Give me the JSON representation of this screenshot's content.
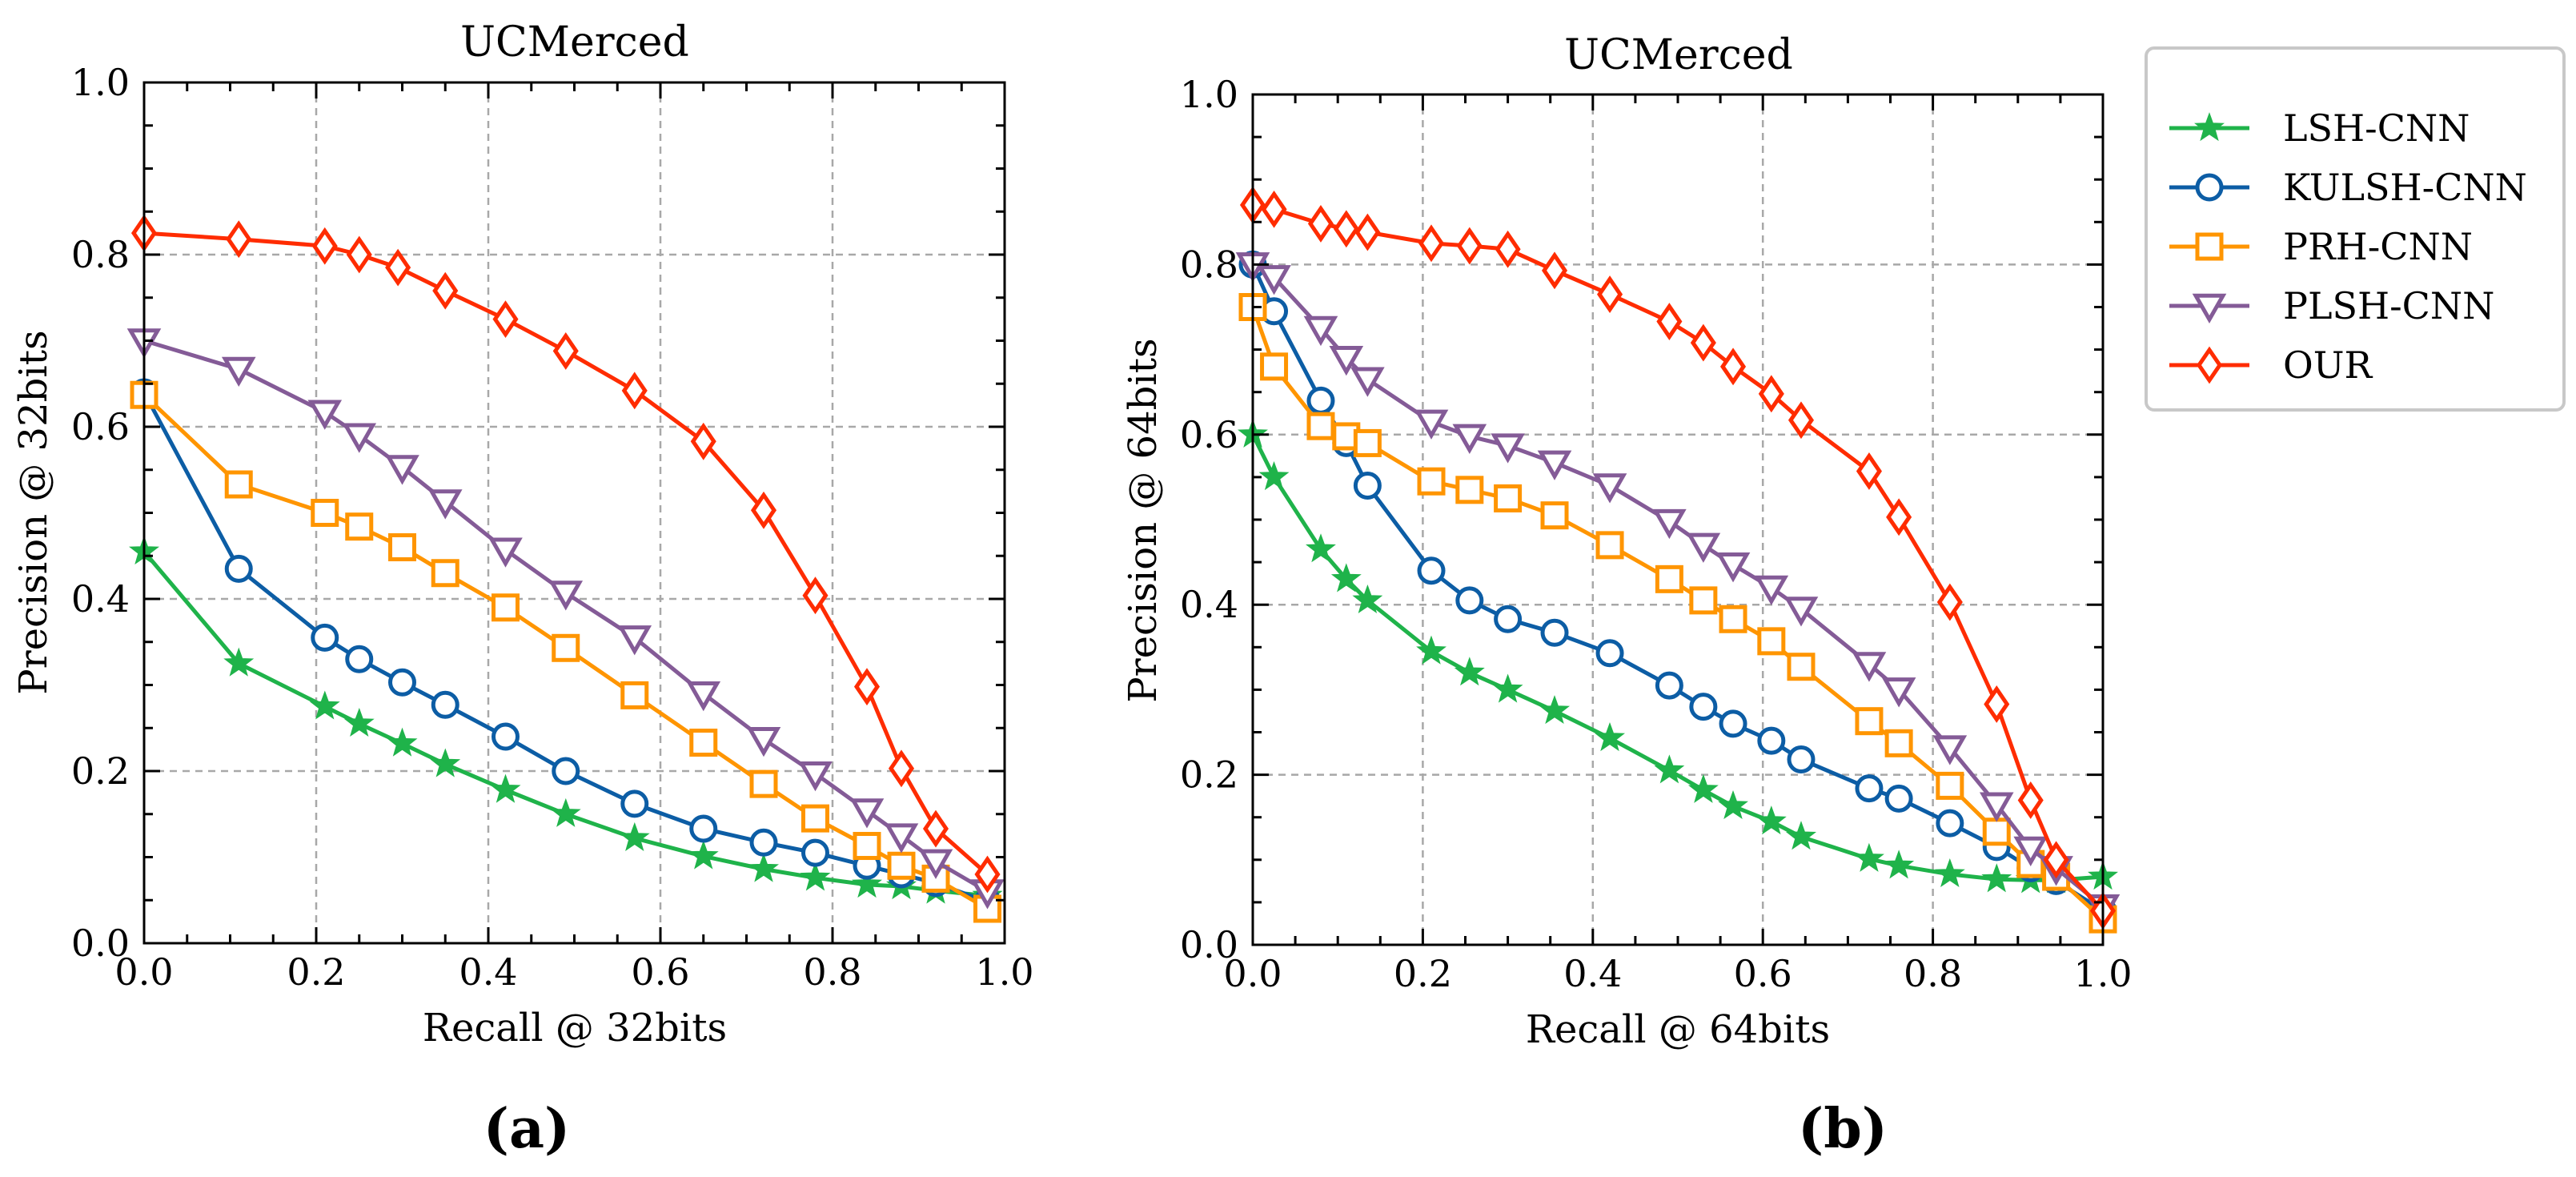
{
  "figure": {
    "legend": {
      "items": [
        {
          "label": "LSH-CNN",
          "color": "#1fb34a",
          "marker": "star"
        },
        {
          "label": "KULSH-CNN",
          "color": "#0c5da5",
          "marker": "circle"
        },
        {
          "label": "PRH-CNN",
          "color": "#ff9500",
          "marker": "square"
        },
        {
          "label": "PLSH-CNN",
          "color": "#845b97",
          "marker": "triangle-down"
        },
        {
          "label": "OUR",
          "color": "#ff2c00",
          "marker": "diamond"
        }
      ]
    }
  },
  "chart_data": [
    {
      "type": "line",
      "caption": "(a)",
      "title": "UCMerced",
      "xlabel": "Recall @ 32bits",
      "ylabel": "Precision @ 32bits",
      "xlim": [
        0,
        1
      ],
      "ylim": [
        0,
        1
      ],
      "xticks": [
        "0.0",
        "0.2",
        "0.4",
        "0.6",
        "0.8",
        "1.0"
      ],
      "yticks": [
        "0.0",
        "0.2",
        "0.4",
        "0.6",
        "0.8",
        "1.0"
      ],
      "grid": true,
      "series": [
        {
          "name": "LSH-CNN",
          "color": "#1fb34a",
          "marker": "star",
          "x": [
            0.0,
            0.11,
            0.21,
            0.25,
            0.3,
            0.35,
            0.42,
            0.49,
            0.57,
            0.65,
            0.72,
            0.78,
            0.84,
            0.88,
            0.92,
            0.98
          ],
          "y": [
            0.455,
            0.325,
            0.275,
            0.255,
            0.232,
            0.208,
            0.178,
            0.15,
            0.122,
            0.101,
            0.086,
            0.076,
            0.068,
            0.066,
            0.061,
            0.055
          ]
        },
        {
          "name": "KULSH-CNN",
          "color": "#0c5da5",
          "marker": "circle",
          "x": [
            0.0,
            0.11,
            0.21,
            0.25,
            0.3,
            0.35,
            0.42,
            0.49,
            0.57,
            0.65,
            0.72,
            0.78,
            0.84,
            0.88,
            0.92,
            0.98
          ],
          "y": [
            0.64,
            0.435,
            0.355,
            0.33,
            0.303,
            0.277,
            0.24,
            0.2,
            0.162,
            0.133,
            0.117,
            0.105,
            0.09,
            0.08,
            0.07,
            0.048
          ]
        },
        {
          "name": "PRH-CNN",
          "color": "#ff9500",
          "marker": "square",
          "x": [
            0.0,
            0.11,
            0.21,
            0.25,
            0.3,
            0.35,
            0.42,
            0.49,
            0.57,
            0.65,
            0.72,
            0.78,
            0.84,
            0.88,
            0.92,
            0.98
          ],
          "y": [
            0.637,
            0.533,
            0.5,
            0.484,
            0.46,
            0.43,
            0.39,
            0.343,
            0.288,
            0.233,
            0.185,
            0.145,
            0.113,
            0.09,
            0.075,
            0.04
          ]
        },
        {
          "name": "PLSH-CNN",
          "color": "#845b97",
          "marker": "triangle-down",
          "x": [
            0.0,
            0.11,
            0.21,
            0.25,
            0.3,
            0.35,
            0.42,
            0.49,
            0.57,
            0.65,
            0.72,
            0.78,
            0.84,
            0.88,
            0.92,
            0.98
          ],
          "y": [
            0.7,
            0.667,
            0.617,
            0.59,
            0.553,
            0.513,
            0.457,
            0.407,
            0.355,
            0.29,
            0.237,
            0.197,
            0.154,
            0.125,
            0.095,
            0.06
          ]
        },
        {
          "name": "OUR",
          "color": "#ff2c00",
          "marker": "diamond",
          "x": [
            0.0,
            0.11,
            0.21,
            0.25,
            0.295,
            0.35,
            0.42,
            0.49,
            0.57,
            0.65,
            0.72,
            0.78,
            0.84,
            0.88,
            0.92,
            0.98
          ],
          "y": [
            0.825,
            0.818,
            0.81,
            0.8,
            0.785,
            0.758,
            0.725,
            0.688,
            0.642,
            0.583,
            0.503,
            0.404,
            0.298,
            0.203,
            0.133,
            0.08
          ]
        }
      ]
    },
    {
      "type": "line",
      "caption": "(b)",
      "title": "UCMerced",
      "xlabel": "Recall @ 64bits",
      "ylabel": "Precision @ 64bits",
      "xlim": [
        0,
        1
      ],
      "ylim": [
        0,
        1
      ],
      "xticks": [
        "0.0",
        "0.2",
        "0.4",
        "0.6",
        "0.8",
        "1.0"
      ],
      "yticks": [
        "0.0",
        "0.2",
        "0.4",
        "0.6",
        "0.8",
        "1.0"
      ],
      "grid": true,
      "series": [
        {
          "name": "LSH-CNN",
          "color": "#1fb34a",
          "marker": "star",
          "x": [
            0.0,
            0.025,
            0.08,
            0.11,
            0.135,
            0.21,
            0.255,
            0.3,
            0.355,
            0.42,
            0.49,
            0.53,
            0.565,
            0.61,
            0.645,
            0.725,
            0.76,
            0.82,
            0.875,
            0.915,
            0.945,
            1.0
          ],
          "y": [
            0.6,
            0.55,
            0.465,
            0.43,
            0.405,
            0.345,
            0.32,
            0.3,
            0.275,
            0.243,
            0.205,
            0.182,
            0.163,
            0.145,
            0.127,
            0.101,
            0.093,
            0.083,
            0.077,
            0.076,
            0.076,
            0.08
          ]
        },
        {
          "name": "KULSH-CNN",
          "color": "#0c5da5",
          "marker": "circle",
          "x": [
            0.0,
            0.025,
            0.08,
            0.11,
            0.135,
            0.21,
            0.255,
            0.3,
            0.355,
            0.42,
            0.49,
            0.53,
            0.565,
            0.61,
            0.645,
            0.725,
            0.76,
            0.82,
            0.875,
            0.915,
            0.945,
            1.0
          ],
          "y": [
            0.8,
            0.745,
            0.64,
            0.59,
            0.54,
            0.44,
            0.405,
            0.383,
            0.367,
            0.343,
            0.305,
            0.28,
            0.26,
            0.24,
            0.218,
            0.184,
            0.172,
            0.143,
            0.115,
            0.09,
            0.075,
            0.04
          ]
        },
        {
          "name": "PRH-CNN",
          "color": "#ff9500",
          "marker": "square",
          "x": [
            0.0,
            0.025,
            0.08,
            0.11,
            0.135,
            0.21,
            0.255,
            0.3,
            0.355,
            0.42,
            0.49,
            0.53,
            0.565,
            0.61,
            0.645,
            0.725,
            0.76,
            0.82,
            0.875,
            0.915,
            0.945,
            1.0
          ],
          "y": [
            0.75,
            0.68,
            0.61,
            0.598,
            0.59,
            0.545,
            0.535,
            0.525,
            0.505,
            0.47,
            0.43,
            0.405,
            0.383,
            0.357,
            0.327,
            0.263,
            0.237,
            0.187,
            0.133,
            0.095,
            0.08,
            0.03
          ]
        },
        {
          "name": "PLSH-CNN",
          "color": "#845b97",
          "marker": "triangle-down",
          "x": [
            0.0,
            0.025,
            0.08,
            0.11,
            0.135,
            0.21,
            0.255,
            0.3,
            0.355,
            0.42,
            0.49,
            0.53,
            0.565,
            0.61,
            0.645,
            0.725,
            0.76,
            0.82,
            0.875,
            0.915,
            0.945,
            1.0
          ],
          "y": [
            0.8,
            0.785,
            0.725,
            0.69,
            0.665,
            0.615,
            0.598,
            0.587,
            0.567,
            0.54,
            0.498,
            0.47,
            0.447,
            0.42,
            0.395,
            0.33,
            0.3,
            0.232,
            0.165,
            0.113,
            0.09,
            0.045
          ]
        },
        {
          "name": "OUR",
          "color": "#ff2c00",
          "marker": "diamond",
          "x": [
            0.0,
            0.025,
            0.08,
            0.11,
            0.135,
            0.21,
            0.255,
            0.3,
            0.355,
            0.42,
            0.49,
            0.53,
            0.565,
            0.61,
            0.645,
            0.725,
            0.76,
            0.82,
            0.875,
            0.915,
            0.945,
            1.0
          ],
          "y": [
            0.87,
            0.865,
            0.848,
            0.842,
            0.838,
            0.825,
            0.822,
            0.818,
            0.793,
            0.765,
            0.733,
            0.708,
            0.68,
            0.648,
            0.617,
            0.557,
            0.503,
            0.403,
            0.283,
            0.17,
            0.1,
            0.04
          ]
        }
      ]
    }
  ]
}
